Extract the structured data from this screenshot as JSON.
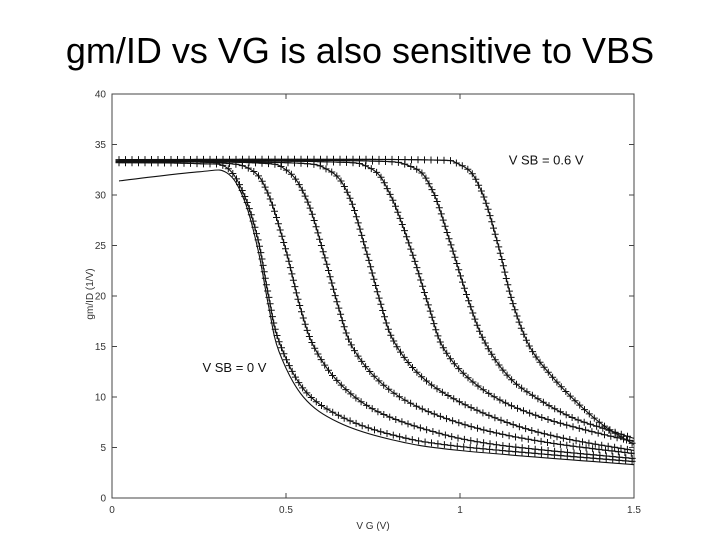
{
  "slide": {
    "title": "gm/ID vs VG is also sensitive to VBS"
  },
  "chart_data": {
    "type": "line",
    "title": "",
    "xlabel": "V G (V)",
    "ylabel": "gm/ID (1/V)",
    "xlim": [
      0,
      1.5
    ],
    "ylim": [
      0,
      40
    ],
    "xticks": [
      "0",
      "0.5",
      "1",
      "1.5"
    ],
    "yticks": [
      "0",
      "5",
      "10",
      "15",
      "20",
      "25",
      "30",
      "35",
      "40"
    ],
    "grid": false,
    "annotations": [
      {
        "text": "V SB = 0.6 V",
        "x": 1.14,
        "y": 33
      },
      {
        "text": "V SB = 0 V",
        "x": 0.26,
        "y": 12.5
      }
    ],
    "series": [
      {
        "markers": "line",
        "values": [
          [
            0.02,
            31.4
          ],
          [
            0.25,
            32.3
          ],
          [
            0.33,
            32.2
          ],
          [
            0.38,
            29.5
          ],
          [
            0.42,
            24.5
          ],
          [
            0.45,
            19.0
          ],
          [
            0.48,
            14.5
          ],
          [
            0.55,
            10.0
          ],
          [
            0.65,
            7.5
          ],
          [
            0.8,
            5.8
          ],
          [
            1.0,
            4.7
          ],
          [
            1.5,
            3.3
          ]
        ]
      },
      {
        "markers": "plus",
        "values": [
          [
            0.02,
            33.2
          ],
          [
            0.25,
            33.1
          ],
          [
            0.33,
            32.7
          ],
          [
            0.38,
            30.0
          ],
          [
            0.42,
            25.5
          ],
          [
            0.45,
            20.0
          ],
          [
            0.48,
            15.5
          ],
          [
            0.55,
            10.8
          ],
          [
            0.65,
            8.2
          ],
          [
            0.8,
            6.3
          ],
          [
            1.0,
            5.1
          ],
          [
            1.5,
            3.6
          ]
        ]
      },
      {
        "markers": "both",
        "values": [
          [
            0.02,
            33.3
          ],
          [
            0.3,
            33.2
          ],
          [
            0.4,
            32.5
          ],
          [
            0.45,
            30.0
          ],
          [
            0.5,
            24.5
          ],
          [
            0.54,
            19.0
          ],
          [
            0.58,
            15.0
          ],
          [
            0.65,
            11.5
          ],
          [
            0.75,
            8.8
          ],
          [
            0.9,
            6.8
          ],
          [
            1.1,
            5.3
          ],
          [
            1.5,
            3.9
          ]
        ]
      },
      {
        "markers": "both",
        "values": [
          [
            0.02,
            33.3
          ],
          [
            0.4,
            33.2
          ],
          [
            0.5,
            32.5
          ],
          [
            0.56,
            29.5
          ],
          [
            0.61,
            24.0
          ],
          [
            0.65,
            19.0
          ],
          [
            0.69,
            15.0
          ],
          [
            0.77,
            11.5
          ],
          [
            0.88,
            9.0
          ],
          [
            1.05,
            6.9
          ],
          [
            1.25,
            5.5
          ],
          [
            1.5,
            4.4
          ]
        ]
      },
      {
        "markers": "both",
        "values": [
          [
            0.02,
            33.3
          ],
          [
            0.5,
            33.2
          ],
          [
            0.62,
            32.5
          ],
          [
            0.68,
            30.0
          ],
          [
            0.73,
            24.5
          ],
          [
            0.77,
            19.5
          ],
          [
            0.81,
            15.5
          ],
          [
            0.89,
            12.0
          ],
          [
            1.0,
            9.5
          ],
          [
            1.15,
            7.3
          ],
          [
            1.3,
            5.9
          ],
          [
            1.5,
            4.7
          ]
        ]
      },
      {
        "markers": "both",
        "values": [
          [
            0.02,
            33.4
          ],
          [
            0.6,
            33.3
          ],
          [
            0.74,
            32.7
          ],
          [
            0.8,
            30.0
          ],
          [
            0.86,
            24.5
          ],
          [
            0.91,
            19.0
          ],
          [
            0.95,
            15.0
          ],
          [
            1.02,
            12.0
          ],
          [
            1.12,
            9.6
          ],
          [
            1.25,
            7.8
          ],
          [
            1.4,
            6.4
          ],
          [
            1.5,
            5.6
          ]
        ]
      },
      {
        "markers": "both",
        "values": [
          [
            0.02,
            33.4
          ],
          [
            0.7,
            33.4
          ],
          [
            0.86,
            32.8
          ],
          [
            0.92,
            30.5
          ],
          [
            0.97,
            25.5
          ],
          [
            1.02,
            20.0
          ],
          [
            1.07,
            15.5
          ],
          [
            1.14,
            12.0
          ],
          [
            1.22,
            9.9
          ],
          [
            1.32,
            8.0
          ],
          [
            1.42,
            6.8
          ],
          [
            1.5,
            5.9
          ]
        ]
      },
      {
        "markers": "both",
        "values": [
          [
            0.02,
            33.5
          ],
          [
            0.85,
            33.5
          ],
          [
            1.0,
            33.0
          ],
          [
            1.06,
            30.5
          ],
          [
            1.11,
            25.0
          ],
          [
            1.15,
            19.5
          ],
          [
            1.2,
            15.0
          ],
          [
            1.27,
            11.8
          ],
          [
            1.35,
            9.0
          ],
          [
            1.42,
            7.0
          ],
          [
            1.5,
            5.3
          ]
        ]
      }
    ]
  }
}
